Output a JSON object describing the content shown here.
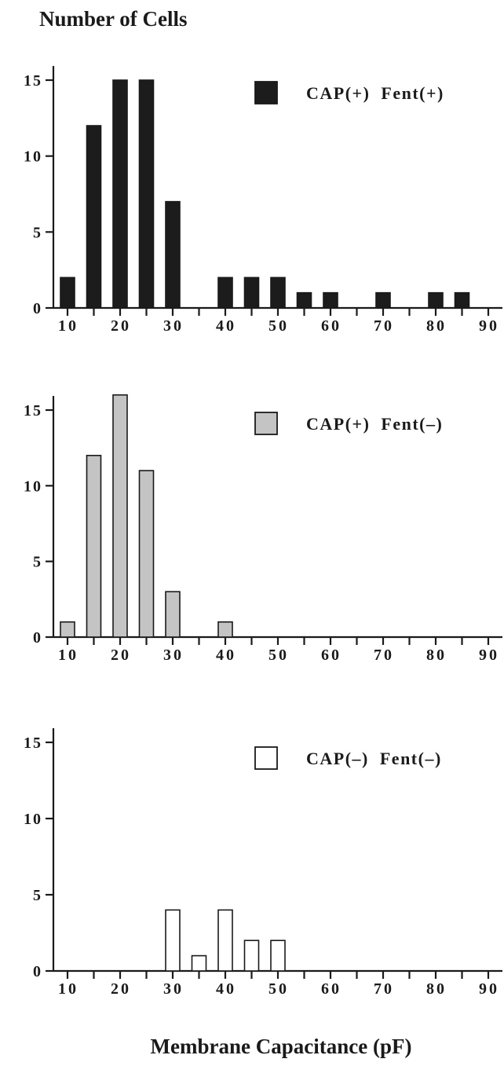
{
  "title": "Number of Cells",
  "xlabel": "Membrane Capacitance (pF)",
  "chart_data": [
    {
      "type": "bar",
      "legend": "CAP(+)  Fent(+)",
      "color": "#1c1c1c",
      "x": [
        10,
        15,
        20,
        25,
        30,
        35,
        40,
        45,
        50,
        55,
        60,
        65,
        70,
        75,
        80,
        85
      ],
      "values": [
        2,
        12,
        15,
        15,
        7,
        0,
        2,
        2,
        2,
        1,
        1,
        0,
        1,
        0,
        1,
        1
      ],
      "xticks": [
        10,
        20,
        30,
        40,
        50,
        60,
        70,
        80,
        90
      ],
      "yticks": [
        0,
        5,
        10,
        15
      ],
      "xlim": [
        7,
        92
      ],
      "ylim": [
        0,
        15
      ]
    },
    {
      "type": "bar",
      "legend": "CAP(+)  Fent(–)",
      "color": "#c4c4c4",
      "x": [
        10,
        15,
        20,
        25,
        30,
        35,
        40
      ],
      "values": [
        1,
        12,
        16,
        11,
        3,
        0,
        1
      ],
      "xticks": [
        10,
        20,
        30,
        40,
        50,
        60,
        70,
        80,
        90
      ],
      "yticks": [
        0,
        5,
        10,
        15
      ],
      "xlim": [
        7,
        92
      ],
      "ylim": [
        0,
        15
      ]
    },
    {
      "type": "bar",
      "legend": "CAP(–)  Fent(–)",
      "color": "#ffffff",
      "x": [
        30,
        35,
        40,
        45,
        50
      ],
      "values": [
        4,
        1,
        4,
        2,
        2
      ],
      "xticks": [
        10,
        20,
        30,
        40,
        50,
        60,
        70,
        80,
        90
      ],
      "yticks": [
        0,
        5,
        10,
        15
      ],
      "xlim": [
        7,
        92
      ],
      "ylim": [
        0,
        15
      ]
    }
  ]
}
